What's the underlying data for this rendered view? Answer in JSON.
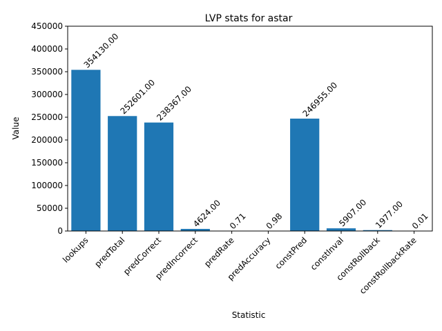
{
  "chart_data": {
    "type": "bar",
    "title": "LVP stats for astar",
    "xlabel": "Statistic",
    "ylabel": "Value",
    "categories": [
      "lookups",
      "predTotal",
      "predCorrect",
      "predIncorrect",
      "predRate",
      "predAccuracy",
      "constPred",
      "constInval",
      "constRollback",
      "constRollbackRate"
    ],
    "values": [
      354130.0,
      252601.0,
      238367.0,
      4624.0,
      0.71,
      0.98,
      246955.0,
      5907.0,
      1977.0,
      0.01
    ],
    "data_labels": [
      "354130.00",
      "252601.00",
      "238367.00",
      "4624.00",
      "0.71",
      "0.98",
      "246955.00",
      "5907.00",
      "1977.00",
      "0.01"
    ],
    "ylim": [
      0,
      450000
    ],
    "yticks": [
      0,
      50000,
      100000,
      150000,
      200000,
      250000,
      300000,
      350000,
      400000,
      450000
    ],
    "bar_color": "#1f77b4",
    "grid": false,
    "legend": "none"
  }
}
